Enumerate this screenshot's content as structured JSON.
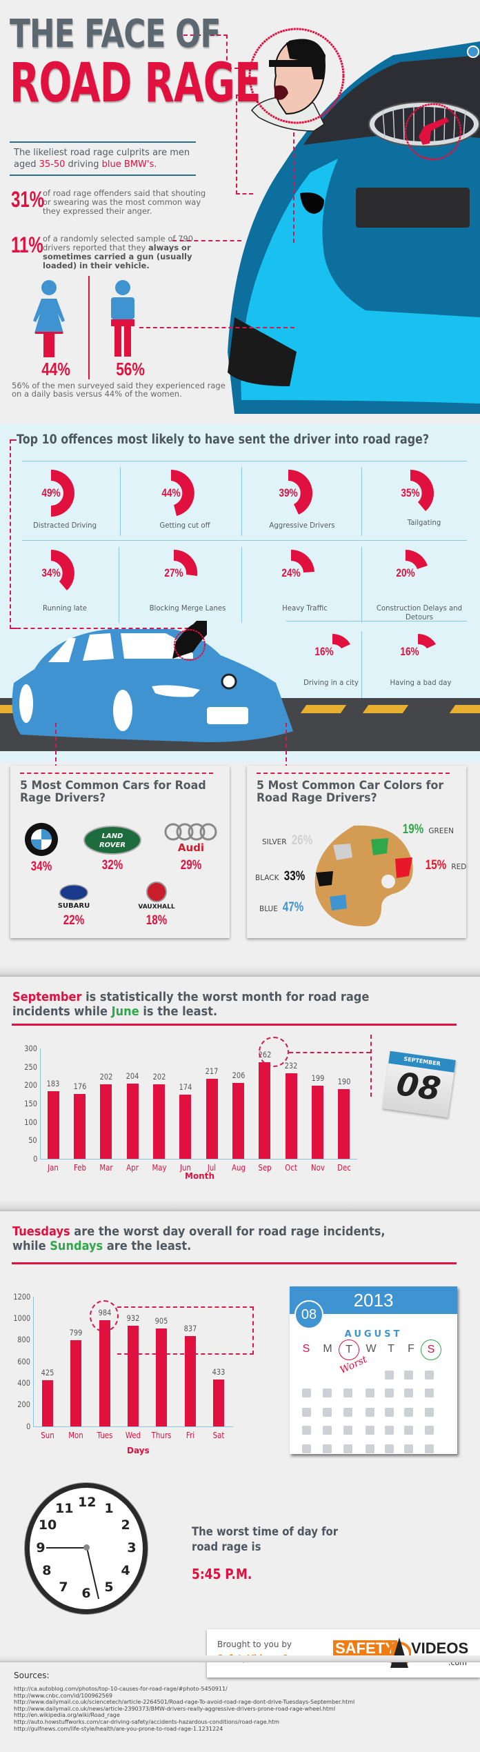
{
  "hero": {
    "title_line1": "THE FACE OF",
    "title_line2": "ROAD RAGE",
    "culprit_pre": "The likeliest road rage culprits are men aged ",
    "culprit_age": "35-50",
    "culprit_mid": " driving ",
    "culprit_car": "blue BMW's.",
    "stat1": {
      "pct": "31%",
      "text": "of road rage offenders said that shouting or swearing was the most common way they expressed their anger."
    },
    "stat2": {
      "pct": "11%",
      "text_plain": "of a randomly selected sample of 790 drivers reported that they ",
      "text_bold": "always or sometimes carried a gun (usually loaded) in their vehicle."
    },
    "women_pct": "44%",
    "men_pct": "56%",
    "gender_note": "56% of the men surveyed said they experienced rage on a daily basis versus 44% of the women."
  },
  "offences": {
    "title": "Top 10 offences most likely to have sent the driver into road rage?",
    "items": [
      {
        "pct": "49%",
        "label": "Distracted Driving",
        "value": 49
      },
      {
        "pct": "44%",
        "label": "Getting cut off",
        "value": 44
      },
      {
        "pct": "39%",
        "label": "Aggressive Drivers",
        "value": 39
      },
      {
        "pct": "35%",
        "label": "Tailgating",
        "value": 35
      },
      {
        "pct": "34%",
        "label": "Running late",
        "value": 34
      },
      {
        "pct": "27%",
        "label": "Blocking Merge Lanes",
        "value": 27
      },
      {
        "pct": "24%",
        "label": "Heavy Traffic",
        "value": 24
      },
      {
        "pct": "20%",
        "label": "Construction Delays and Detours",
        "value": 20
      },
      {
        "pct": "16%",
        "label": "Driving in a city",
        "value": 16
      },
      {
        "pct": "16%",
        "label": "Having a bad day",
        "value": 16
      }
    ]
  },
  "cars": {
    "title": "5 Most Common Cars for Road Rage Drivers?",
    "brands": [
      {
        "name": "BMW",
        "pct": "34%"
      },
      {
        "name": "LAND ROVER",
        "pct": "32%"
      },
      {
        "name": "Audi",
        "pct": "29%"
      },
      {
        "name": "SUBARU",
        "pct": "22%"
      },
      {
        "name": "VAUXHALL",
        "pct": "18%"
      }
    ]
  },
  "colors": {
    "title": "5 Most Common Car Colors for Road Rage Drivers?",
    "items": [
      {
        "name": "SILVER",
        "pct": "26%",
        "hex": "#d0d0d0"
      },
      {
        "name": "GREEN",
        "pct": "19%",
        "hex": "#2ea84a"
      },
      {
        "name": "RED",
        "pct": "15%",
        "hex": "#e8172a"
      },
      {
        "name": "BLACK",
        "pct": "33%",
        "hex": "#111111"
      },
      {
        "name": "BLUE",
        "pct": "47%",
        "hex": "#3f93d0"
      }
    ]
  },
  "months": {
    "headline_red": "September",
    "headline_mid": " is statistically the worst month for road rage incidents while ",
    "headline_green": "June",
    "headline_end": " is the least.",
    "calendar_month": "SEPTEMBER",
    "calendar_day": "08"
  },
  "days": {
    "headline_red": "Tuesdays",
    "headline_mid": " are the worst day overall for road rage incidents, while ",
    "headline_green": "Sundays",
    "headline_end": " are the least.",
    "cal_year": "2013",
    "cal_badge": "08",
    "cal_month": "AUGUST",
    "weekdays": [
      "S",
      "M",
      "T",
      "W",
      "T",
      "F",
      "S"
    ],
    "worst_label": "Worst"
  },
  "time": {
    "text": "The worst time of day for road rage is",
    "value": "5:45 P.M.",
    "clock_numbers": [
      "12",
      "1",
      "2",
      "3",
      "4",
      "5",
      "6",
      "7",
      "8",
      "9",
      "10",
      "11"
    ]
  },
  "brought": {
    "line1": "Brought to you by",
    "line2": "SafetyVideos.Com",
    "logo_left": "SAFETY",
    "logo_right": "VIDEOS",
    "logo_sub": ".com"
  },
  "sources": {
    "title": "Sources:",
    "urls": [
      "http://ca.autoblog.com/photos/top-10-causes-for-road-rage/#photo-5450911/",
      "http://www.cnbc.com/id/100962569",
      "http://www.dailymail.co.uk/sciencetech/article-2264501/Road-rage-To-avoid-road-rage-dont-drive-Tuesdays-September.html",
      "http://www.dailymail.co.uk/news/article-2390373/BMW-drivers-really-aggressive-drivers-prone-road-rage-wheel.html",
      "http://en.wikipedia.org/wiki/Road_rage",
      "http://auto.howstuffworks.com/car-driving-safety/accidents-hazardous-conditions/road-rage.htm",
      "http://gulfnews.com/life-style/health/are-you-prone-to-road-rage-1.1231224"
    ]
  },
  "chart_data": [
    {
      "type": "bar",
      "title": "September is statistically the worst month for road rage incidents while June is the least.",
      "categories": [
        "Jan",
        "Feb",
        "Mar",
        "Apr",
        "May",
        "Jun",
        "Jul",
        "Aug",
        "Sep",
        "Oct",
        "Nov",
        "Dec"
      ],
      "values": [
        183,
        176,
        202,
        204,
        202,
        174,
        217,
        206,
        262,
        232,
        199,
        190
      ],
      "xlabel": "Month",
      "ylabel": "",
      "ylim": [
        0,
        300
      ],
      "yticks": [
        0,
        50,
        100,
        150,
        200,
        250,
        300
      ],
      "highlight": "Sep"
    },
    {
      "type": "bar",
      "title": "Tuesdays are the worst day overall for road rage incidents, while Sundays are the least.",
      "categories": [
        "Sun",
        "Mon",
        "Tues",
        "Wed",
        "Thurs",
        "Fri",
        "Sat"
      ],
      "values": [
        425,
        799,
        984,
        932,
        905,
        837,
        433
      ],
      "xlabel": "Days",
      "ylabel": "",
      "ylim": [
        0,
        1200
      ],
      "yticks": [
        0,
        200,
        400,
        600,
        800,
        1000,
        1200
      ],
      "highlight": "Tues"
    },
    {
      "type": "pie",
      "title": "Top 10 offences most likely to have sent the driver into road rage?",
      "categories": [
        "Distracted Driving",
        "Getting cut off",
        "Aggressive Drivers",
        "Tailgating",
        "Running late",
        "Blocking Merge Lanes",
        "Heavy Traffic",
        "Construction Delays and Detours",
        "Driving in a city",
        "Having a bad day"
      ],
      "values": [
        49,
        44,
        39,
        35,
        34,
        27,
        24,
        20,
        16,
        16
      ]
    }
  ]
}
